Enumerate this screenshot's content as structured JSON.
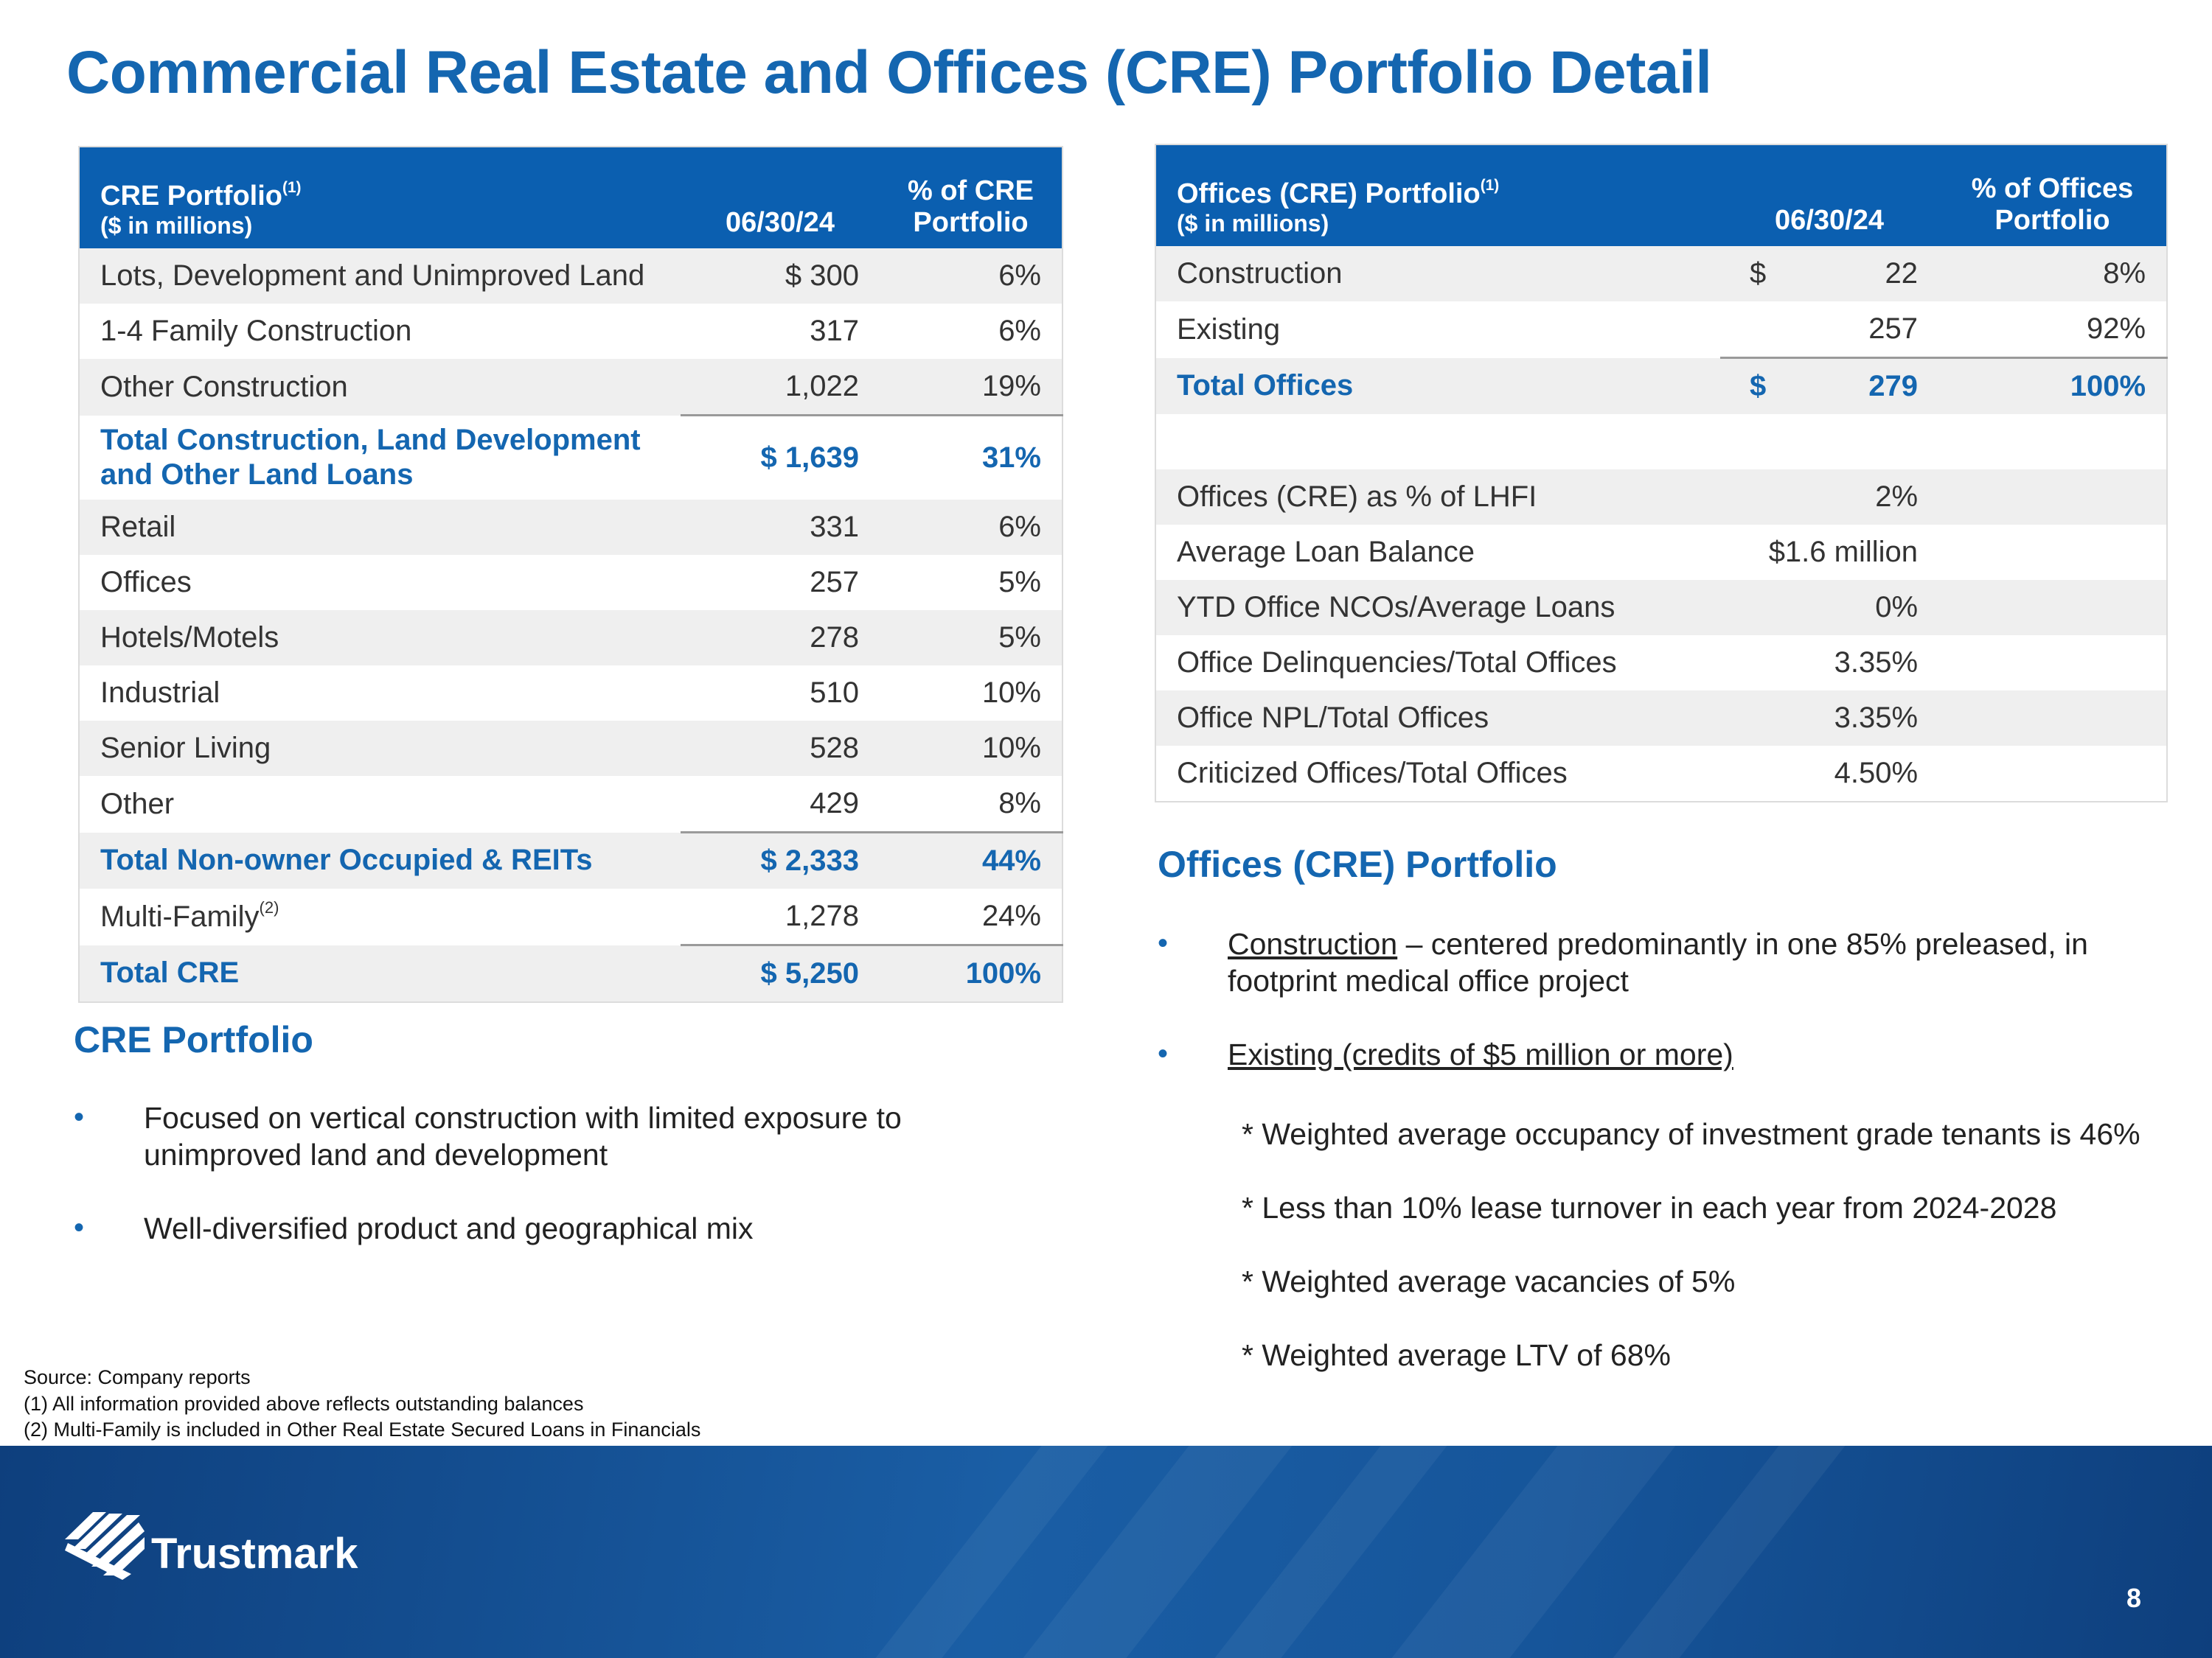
{
  "title": "Commercial Real Estate and Offices (CRE) Portfolio Detail",
  "cre_table": {
    "header": {
      "col1": "CRE Portfolio",
      "col1_sup": "(1)",
      "col1_sub": "($ in millions)",
      "col2": "06/30/24",
      "col3_line1": "% of CRE",
      "col3_line2": "Portfolio"
    },
    "rows": [
      {
        "label": "Lots, Development and Unimproved Land",
        "value": "$ 300",
        "pct": "6%"
      },
      {
        "label": "1-4 Family Construction",
        "value": "317",
        "pct": "6%"
      },
      {
        "label": "Other Construction",
        "value": "1,022",
        "pct": "19%"
      },
      {
        "label": "Total Construction, Land Development and Other Land Loans",
        "value": "$ 1,639",
        "pct": "31%"
      },
      {
        "label": "Retail",
        "value": "331",
        "pct": "6%"
      },
      {
        "label": "Offices",
        "value": "257",
        "pct": "5%"
      },
      {
        "label": "Hotels/Motels",
        "value": "278",
        "pct": "5%"
      },
      {
        "label": "Industrial",
        "value": "510",
        "pct": "10%"
      },
      {
        "label": "Senior Living",
        "value": "528",
        "pct": "10%"
      },
      {
        "label": "Other",
        "value": "429",
        "pct": "8%"
      },
      {
        "label": "Total Non-owner Occupied & REITs",
        "value": "$ 2,333",
        "pct": "44%"
      },
      {
        "label": "Multi-Family",
        "label_sup": "(2)",
        "value": "1,278",
        "pct": "24%"
      },
      {
        "label": "Total CRE",
        "value": "$ 5,250",
        "pct": "100%"
      }
    ]
  },
  "offices_table": {
    "header": {
      "col1": "Offices (CRE) Portfolio",
      "col1_sup": "(1)",
      "col1_sub": "($ in millions)",
      "col2": "06/30/24",
      "col3_line1": "% of Offices",
      "col3_line2": "Portfolio"
    },
    "rows": [
      {
        "label": "Construction",
        "dollar": "$",
        "value": "22",
        "pct": "8%"
      },
      {
        "label": "Existing",
        "dollar": "",
        "value": "257",
        "pct": "92%"
      },
      {
        "label": "Total Offices",
        "dollar": "$",
        "value": "279",
        "pct": "100%"
      }
    ],
    "metrics": [
      {
        "label": "Offices (CRE) as % of LHFI",
        "value": "2%"
      },
      {
        "label": "Average Loan Balance",
        "value": "$1.6 million"
      },
      {
        "label": "YTD Office NCOs/Average Loans",
        "value": "0%"
      },
      {
        "label": "Office Delinquencies/Total Offices",
        "value": "3.35%"
      },
      {
        "label": "Office NPL/Total Offices",
        "value": "3.35%"
      },
      {
        "label": "Criticized Offices/Total Offices",
        "value": "4.50%"
      }
    ]
  },
  "cre_section": {
    "heading": "CRE Portfolio",
    "bullets": [
      "Focused on vertical construction with limited exposure to unimproved land and development",
      "Well-diversified product and geographical mix"
    ]
  },
  "offices_section": {
    "heading": "Offices (CRE) Portfolio",
    "bullet1_underlined": "Construction",
    "bullet1_rest": " – centered predominantly in one 85% preleased, in footprint medical office project",
    "bullet2_underlined": "Existing (credits of $5 million or more)",
    "sub_items": [
      "* Weighted average occupancy of investment grade tenants is 46%",
      "*  Less than 10% lease turnover in each year from 2024-2028",
      "*  Weighted average vacancies of 5%",
      "*  Weighted average LTV of 68%"
    ]
  },
  "footnotes": [
    "Source: Company reports",
    "(1) All information provided above reflects outstanding balances",
    "(2) Multi-Family is included in Other Real Estate Secured  Loans in Financials"
  ],
  "footer": {
    "brand": "Trustmark",
    "page_number": "8"
  },
  "colors": {
    "accent": "#1466b0",
    "header_fill": "#0b5fb0",
    "row_shade": "#efefef",
    "footer_dark": "#0e3f7d"
  }
}
